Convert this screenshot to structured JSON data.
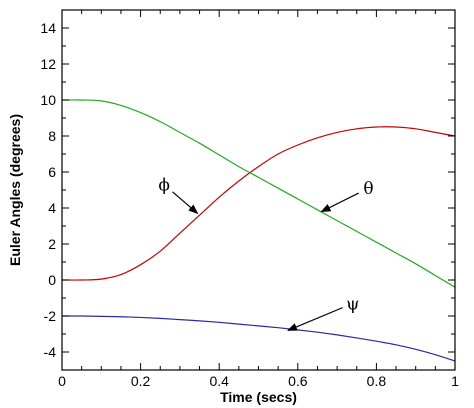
{
  "chart_data": {
    "type": "line",
    "xlabel": "Time (secs)",
    "ylabel": "Euler Angles (degrees)",
    "xlim": [
      0,
      1
    ],
    "ylim": [
      -5,
      15
    ],
    "xticks": [
      0,
      0.2,
      0.4,
      0.6,
      0.8,
      1
    ],
    "xtick_labels": [
      "0",
      "0.2",
      "0.4",
      "0.6",
      "0.8",
      "1"
    ],
    "yticks": [
      -4,
      -2,
      0,
      2,
      4,
      6,
      8,
      10,
      12,
      14
    ],
    "ytick_labels": [
      "-4",
      "-2",
      "0",
      "2",
      "4",
      "6",
      "8",
      "10",
      "12",
      "14"
    ],
    "grid": false,
    "x": [
      0,
      0.05,
      0.1,
      0.15,
      0.2,
      0.25,
      0.3,
      0.35,
      0.4,
      0.45,
      0.5,
      0.55,
      0.6,
      0.65,
      0.7,
      0.75,
      0.8,
      0.85,
      0.9,
      0.95,
      1.0
    ],
    "series": [
      {
        "name": "θ",
        "color": "#cc0000",
        "values": [
          0,
          0,
          0.05,
          0.3,
          0.85,
          1.6,
          2.6,
          3.6,
          4.6,
          5.5,
          6.3,
          7.0,
          7.5,
          7.9,
          8.2,
          8.4,
          8.5,
          8.5,
          8.4,
          8.2,
          8.0
        ]
      },
      {
        "name": "ϕ",
        "color": "#22aa22",
        "values": [
          10,
          10,
          9.95,
          9.7,
          9.3,
          8.8,
          8.2,
          7.6,
          6.95,
          6.3,
          5.7,
          5.1,
          4.5,
          3.9,
          3.3,
          2.7,
          2.1,
          1.5,
          0.9,
          0.25,
          -0.4
        ]
      },
      {
        "name": "ψ",
        "color": "#2a2aa0",
        "values": [
          -2,
          -2,
          -2.02,
          -2.04,
          -2.08,
          -2.13,
          -2.2,
          -2.27,
          -2.35,
          -2.45,
          -2.55,
          -2.65,
          -2.77,
          -2.9,
          -3.05,
          -3.22,
          -3.4,
          -3.6,
          -3.85,
          -4.15,
          -4.5
        ]
      }
    ],
    "annotations": [
      {
        "text": "ϕ",
        "label_x": 0.26,
        "label_y": 5.3,
        "arrow_to_x": 0.345,
        "arrow_to_y": 3.7
      },
      {
        "text": "θ",
        "label_x": 0.78,
        "label_y": 5.1,
        "arrow_to_x": 0.66,
        "arrow_to_y": 3.8
      },
      {
        "text": "ψ",
        "label_x": 0.74,
        "label_y": -1.3,
        "arrow_to_x": 0.575,
        "arrow_to_y": -2.8
      }
    ]
  }
}
